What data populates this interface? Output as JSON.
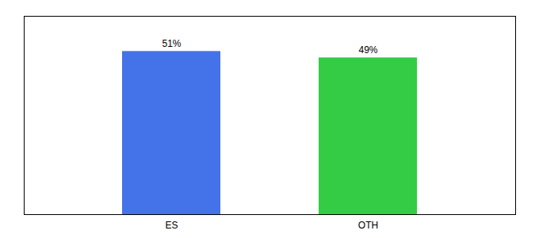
{
  "chart_data": {
    "type": "bar",
    "categories": [
      "ES",
      "OTH"
    ],
    "values": [
      51,
      49
    ],
    "value_labels": [
      "51%",
      "49%"
    ],
    "colors": [
      "#4472e8",
      "#33cc44"
    ],
    "ylim": [
      0,
      62
    ],
    "yticks": [],
    "data_labels": true,
    "tick_labels": "x",
    "grid": false
  }
}
